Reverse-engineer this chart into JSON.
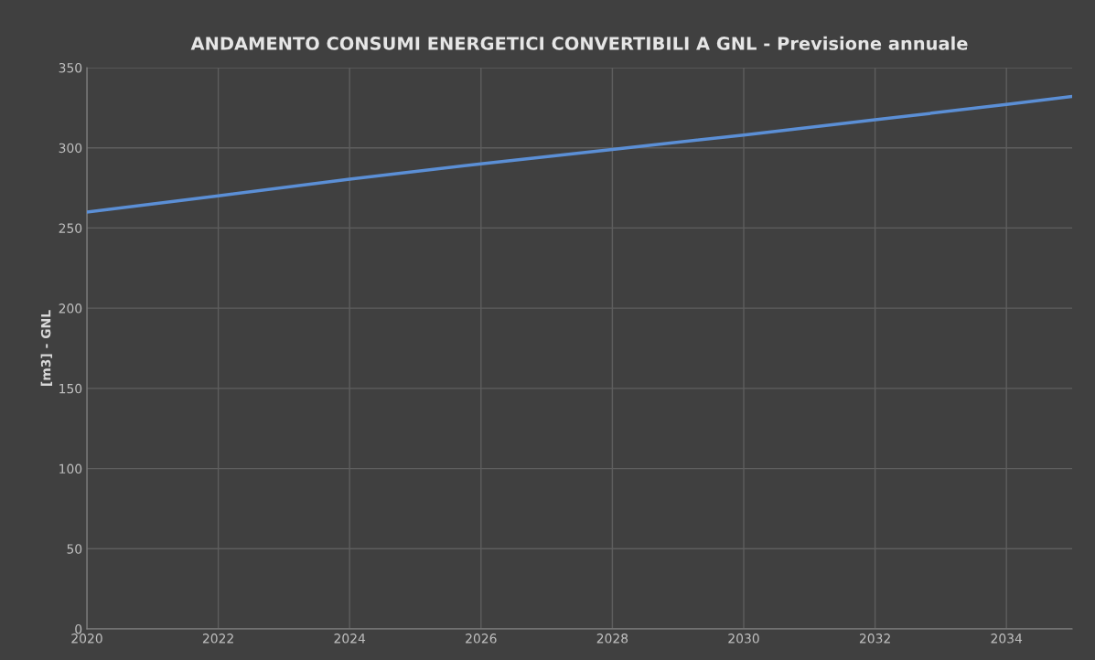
{
  "chart_data": {
    "type": "line",
    "title": "ANDAMENTO CONSUMI ENERGETICI CONVERTIBILI A GNL - Previsione annuale",
    "ylabel": "[m3] - GNL",
    "x": [
      2020,
      2022,
      2024,
      2026,
      2028,
      2030,
      2032,
      2034,
      2035
    ],
    "series": [
      {
        "color": "#5b8fd6",
        "values": [
          260,
          270,
          280.5,
          290,
          299,
          308,
          317.5,
          327,
          332
        ]
      }
    ],
    "xlim": [
      2020,
      2035
    ],
    "xticks": [
      2020,
      2022,
      2024,
      2026,
      2028,
      2030,
      2032,
      2034
    ],
    "ylim": [
      0,
      350
    ],
    "yticks": [
      0,
      50,
      100,
      150,
      200,
      250,
      300,
      350
    ],
    "grid": true,
    "marker": "none",
    "line_style": "solid"
  }
}
